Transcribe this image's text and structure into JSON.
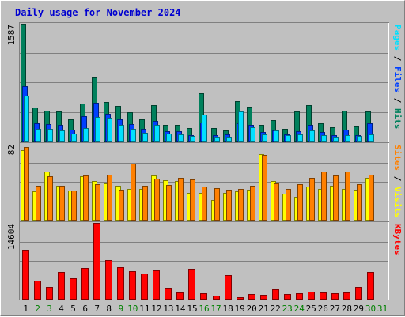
{
  "colors": {
    "background": "#C0C0C0",
    "hits": "#00805C",
    "files": "#0040FF",
    "pages": "#00E0FF",
    "visits": "#FFFF00",
    "sites": "#FF8000",
    "kbytes": "#FF0000",
    "weekday_label": "#000000",
    "weekend_label": "#008000",
    "title": "#0000D0"
  },
  "chart_data": {
    "type": "bar",
    "title": "Daily usage for November 2024",
    "categories": [
      "1",
      "2",
      "3",
      "4",
      "5",
      "6",
      "7",
      "8",
      "9",
      "10",
      "11",
      "12",
      "13",
      "14",
      "15",
      "16",
      "17",
      "18",
      "19",
      "20",
      "21",
      "22",
      "23",
      "24",
      "25",
      "26",
      "27",
      "28",
      "29",
      "30",
      "31"
    ],
    "weekend_days": [
      "2",
      "3",
      "9",
      "10",
      "16",
      "17",
      "23",
      "24",
      "30",
      "31"
    ],
    "panels": [
      {
        "name": "hits-files-pages",
        "ymax_label": "1587",
        "ylim": [
          0,
          1587
        ],
        "legend": [
          {
            "text": "Pages",
            "color": "#00E0FF"
          },
          {
            "text": " / ",
            "color": "#000000"
          },
          {
            "text": "Files",
            "color": "#0040FF"
          },
          {
            "text": " / ",
            "color": "#000000"
          },
          {
            "text": "Hits",
            "color": "#00805C"
          }
        ],
        "series": [
          {
            "name": "Hits",
            "color": "#00805C",
            "values": [
              1587,
              460,
              420,
              400,
              300,
              510,
              860,
              530,
              480,
              390,
              300,
              490,
              220,
              220,
              180,
              650,
              180,
              150,
              540,
              470,
              220,
              290,
              170,
              400,
              490,
              240,
              190,
              420,
              200,
              410,
              0
            ]
          },
          {
            "name": "Files",
            "color": "#0040FF",
            "values": [
              750,
              250,
              230,
              220,
              160,
              340,
              520,
              370,
              300,
              230,
              170,
              280,
              140,
              140,
              90,
              260,
              90,
              100,
              250,
              220,
              130,
              150,
              100,
              140,
              220,
              130,
              90,
              160,
              90,
              240,
              0
            ]
          },
          {
            "name": "Pages",
            "color": "#00E0FF",
            "values": [
              620,
              170,
              170,
              150,
              110,
              180,
              330,
              320,
              220,
              170,
              120,
              220,
              110,
              100,
              70,
              360,
              60,
              60,
              400,
              190,
              100,
              150,
              90,
              100,
              150,
              90,
              60,
              90,
              70,
              100,
              0
            ]
          }
        ]
      },
      {
        "name": "visits-sites",
        "ymax_label": "82",
        "ylim": [
          0,
          82
        ],
        "legend": [
          {
            "text": "Sites",
            "color": "#FF8000"
          },
          {
            "text": " / ",
            "color": "#000000"
          },
          {
            "text": "Visits",
            "color": "#FFFF00"
          }
        ],
        "series": [
          {
            "name": "Visits",
            "color": "#FFFF00",
            "values": [
              75,
              31,
              52,
              37,
              32,
              47,
              42,
              40,
              37,
              34,
              34,
              48,
              43,
              42,
              30,
              30,
              22,
              30,
              31,
              33,
              71,
              42,
              29,
              25,
              36,
              34,
              37,
              34,
              33,
              46,
              0
            ]
          },
          {
            "name": "Sites",
            "color": "#FF8000",
            "values": [
              79,
              37,
              47,
              37,
              32,
              48,
              39,
              49,
              33,
              61,
              37,
              45,
              38,
              46,
              44,
              36,
              35,
              33,
              34,
              37,
              70,
              40,
              34,
              39,
              46,
              52,
              48,
              52,
              39,
              49,
              0
            ]
          }
        ]
      },
      {
        "name": "kbytes",
        "ymax_label": "14604",
        "ylim": [
          0,
          14604
        ],
        "legend": [
          {
            "text": "KBytes",
            "color": "#FF0000"
          }
        ],
        "series": [
          {
            "name": "KBytes",
            "color": "#FF0000",
            "values": [
              9500,
              3600,
              2400,
              5300,
              4000,
              6000,
              14604,
              7600,
              6200,
              5400,
              4900,
              5500,
              2200,
              1400,
              5800,
              1200,
              700,
              4600,
              400,
              1000,
              900,
              1900,
              1000,
              1200,
              1500,
              1300,
              1200,
              1300,
              2400,
              5200,
              0
            ]
          }
        ]
      }
    ]
  }
}
